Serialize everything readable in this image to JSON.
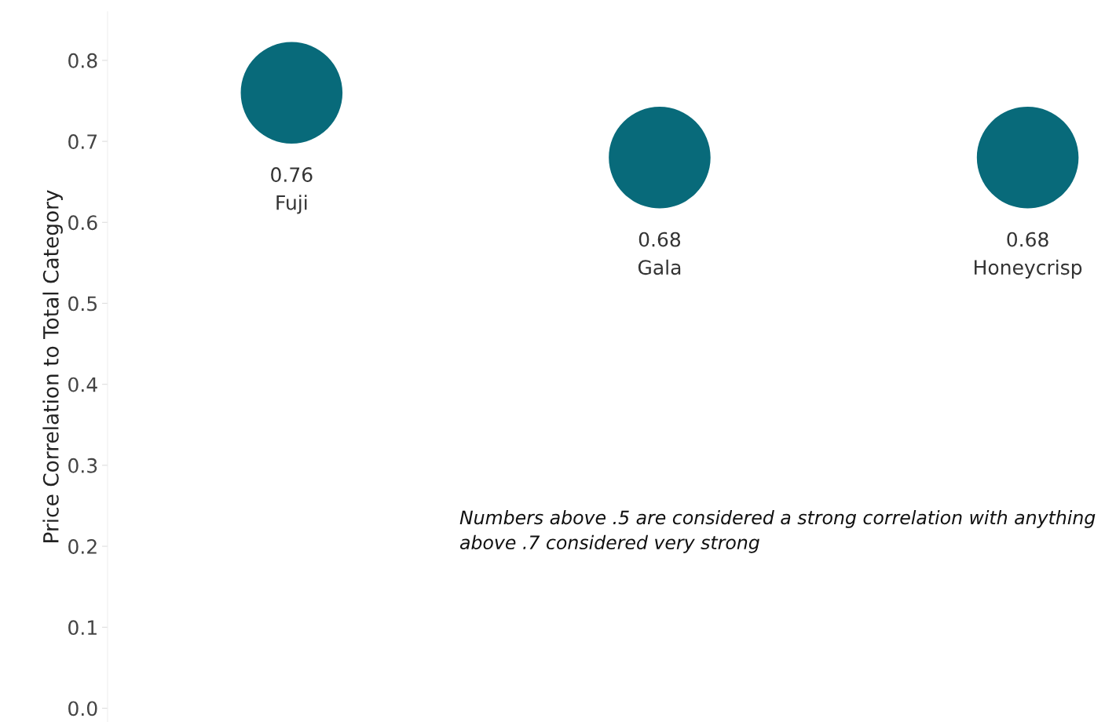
{
  "chart_data": {
    "type": "scatter",
    "ylabel": "Price Correlation to Total Category",
    "categories": [
      "Fuji",
      "Gala",
      "Honeycrisp"
    ],
    "series": [
      {
        "color": "#086a7a",
        "values": [
          0.76,
          0.68,
          0.68
        ]
      }
    ],
    "marker": "circle",
    "data_labels": true,
    "grid": false,
    "tick_labels": "y",
    "ylim": [
      -0.017,
      0.86
    ],
    "yticks": [
      {
        "value": 0,
        "label": "0.0"
      },
      0.1,
      0.2,
      0.3,
      0.4,
      0.5,
      0.6,
      0.7,
      0.8
    ],
    "annotations": [
      "Numbers above .5 are considered a strong correlation with anything above .7 considered very strong"
    ]
  }
}
